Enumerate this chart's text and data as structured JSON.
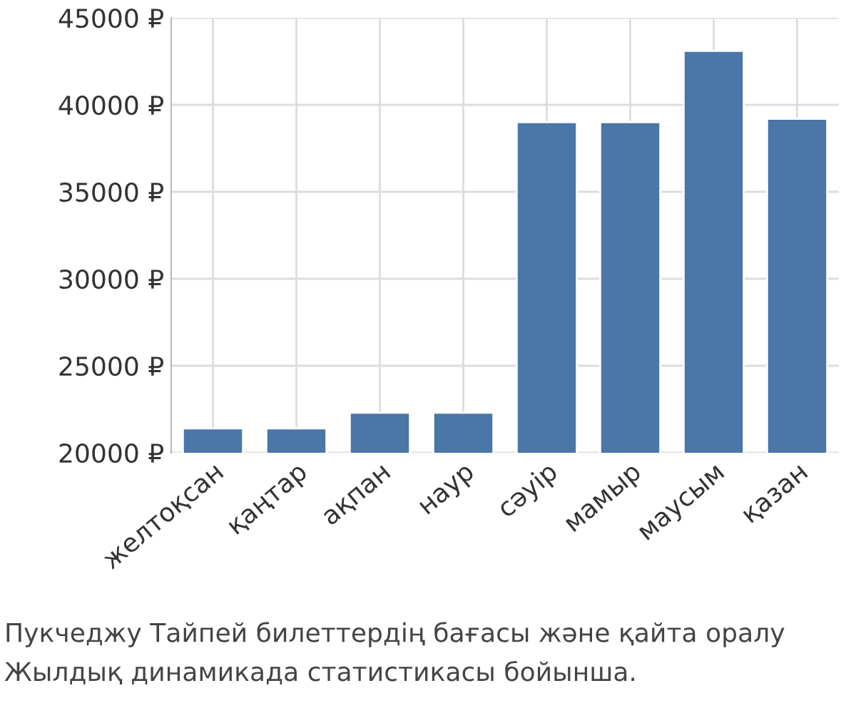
{
  "chart_data": {
    "type": "bar",
    "categories": [
      "желтоқсан",
      "қаңтар",
      "ақпан",
      "наур",
      "сәуір",
      "мамыр",
      "маусым",
      "қазан"
    ],
    "values": [
      21400,
      21400,
      22300,
      22300,
      39000,
      39000,
      43100,
      39200
    ],
    "color": "#4a76a8",
    "ylim": [
      20000,
      45000
    ],
    "yticks": [
      {
        "value": 20000,
        "label": "20000 ₽"
      },
      {
        "value": 25000,
        "label": "25000 ₽"
      },
      {
        "value": 30000,
        "label": "30000 ₽"
      },
      {
        "value": 35000,
        "label": "35000 ₽"
      },
      {
        "value": 40000,
        "label": "40000 ₽"
      },
      {
        "value": 45000,
        "label": "45000 ₽"
      }
    ],
    "grid": true,
    "annotations": [
      "Пукчеджу Тайпей билеттердің бағасы және қайта оралу",
      "Жылдық динамикада статистикасы бойынша."
    ]
  }
}
